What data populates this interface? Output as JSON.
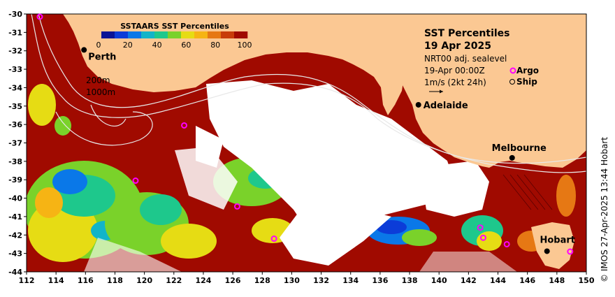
{
  "colors": {
    "land": "#fbc893",
    "ocean_base": "#a00a00",
    "no_data": "#ffffff",
    "argo_marker": "#ff00ff",
    "contour": "#e8e8e8",
    "percentile_scale": [
      "#0a1496",
      "#0c3cd8",
      "#0a78e8",
      "#12b4c8",
      "#1ec88c",
      "#7ad22a",
      "#e6dc14",
      "#f6b414",
      "#e67814",
      "#c83c0a",
      "#a00a00"
    ]
  },
  "chart_data": {
    "type": "map",
    "x_axis": {
      "ticks": [
        "112",
        "114",
        "116",
        "118",
        "120",
        "122",
        "124",
        "126",
        "128",
        "130",
        "132",
        "134",
        "136",
        "138",
        "140",
        "142",
        "144",
        "146",
        "148",
        "150"
      ],
      "range": [
        112,
        150
      ]
    },
    "y_axis": {
      "ticks": [
        "-30",
        "-31",
        "-32",
        "-33",
        "-34",
        "-35",
        "-36",
        "-37",
        "-38",
        "-39",
        "-40",
        "-41",
        "-42",
        "-43",
        "-44"
      ],
      "range": [
        -44,
        -30
      ]
    },
    "legend": {
      "title": "SSTAARS SST Percentiles",
      "ticks": [
        "0",
        "20",
        "40",
        "60",
        "80",
        "100"
      ]
    },
    "cities": [
      {
        "name": "Perth",
        "lon": 115.9,
        "lat": -31.95
      },
      {
        "name": "Adelaide",
        "lon": 138.6,
        "lat": -34.93
      },
      {
        "name": "Melbourne",
        "lon": 144.96,
        "lat": -37.81
      },
      {
        "name": "Hobart",
        "lon": 147.33,
        "lat": -42.88
      }
    ],
    "argo_floats": [
      {
        "lon": 112.9,
        "lat": -30.15
      },
      {
        "lon": 119.4,
        "lat": -39.05
      },
      {
        "lon": 122.7,
        "lat": -36.05
      },
      {
        "lon": 126.3,
        "lat": -40.45
      },
      {
        "lon": 128.8,
        "lat": -42.2
      },
      {
        "lon": 142.8,
        "lat": -41.6
      },
      {
        "lon": 143.0,
        "lat": -42.15
      },
      {
        "lon": 144.6,
        "lat": -42.5
      },
      {
        "lon": 148.9,
        "lat": -42.9
      }
    ]
  },
  "labels": {
    "title": "SST Percentiles",
    "date": "19 Apr 2025",
    "product": "NRT00 adj. sealevel",
    "time": "19-Apr 00:00Z",
    "argo": "Argo",
    "ship": "Ship",
    "velocity": "1m/s (2kt 24h)",
    "depth_200": "200m",
    "depth_1000": "1000m",
    "credit": "© IMOS 27-Apr-2025 13:44 Hobart"
  }
}
